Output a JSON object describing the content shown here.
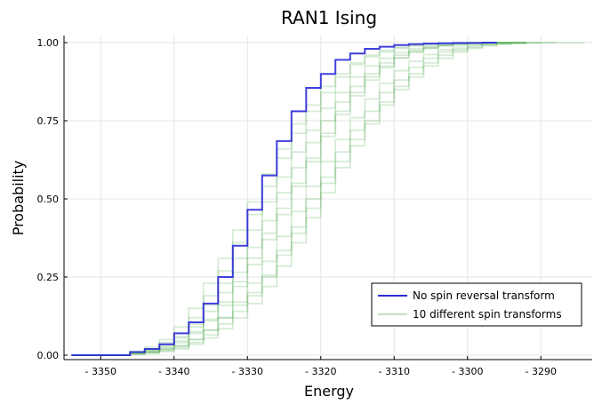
{
  "chart_data": {
    "type": "line",
    "step": true,
    "title": "RAN1 Ising",
    "xlabel": "Energy",
    "ylabel": "Probability",
    "xlim": [
      -3355,
      -3283
    ],
    "ylim": [
      0,
      1
    ],
    "x_ticks": [
      -3350,
      -3340,
      -3330,
      -3320,
      -3310,
      -3300,
      -3290
    ],
    "x_tick_labels": [
      "- 3350",
      "- 3340",
      "- 3330",
      "- 3320",
      "- 3310",
      "- 3300",
      "- 3290"
    ],
    "y_ticks": [
      0,
      0.25,
      0.5,
      0.75,
      1
    ],
    "y_tick_labels": [
      "0.00",
      "0.25",
      "0.50",
      "0.75",
      "1.00"
    ],
    "grid": true,
    "legend_position": "bottom-right",
    "legend": [
      "No spin reversal transform",
      "10 different spin transforms"
    ],
    "colors": {
      "main": "#2b2bd8",
      "transforms": "#4aa84a"
    },
    "series": [
      {
        "group": "No spin reversal transform",
        "x": [
          -3354,
          -3346,
          -3344,
          -3342,
          -3340,
          -3338,
          -3336,
          -3334,
          -3332,
          -3330,
          -3328,
          -3326,
          -3324,
          -3322,
          -3320,
          -3318,
          -3316,
          -3314,
          -3312,
          -3310,
          -3308,
          -3306,
          -3304,
          -3302,
          -3300,
          -3298,
          -3296
        ],
        "y": [
          0.0,
          0.01,
          0.02,
          0.035,
          0.07,
          0.105,
          0.165,
          0.25,
          0.35,
          0.465,
          0.575,
          0.685,
          0.78,
          0.855,
          0.9,
          0.945,
          0.965,
          0.98,
          0.987,
          0.992,
          0.995,
          0.997,
          0.998,
          0.999,
          0.999,
          1.0,
          1.0
        ]
      },
      {
        "group": "10 different spin transforms",
        "x": [
          -3354,
          -3346,
          -3344,
          -3342,
          -3340,
          -3338,
          -3336,
          -3334,
          -3332,
          -3330,
          -3328,
          -3326,
          -3324,
          -3322,
          -3320,
          -3318,
          -3316,
          -3314,
          -3312,
          -3310,
          -3308,
          -3306,
          -3304,
          -3302,
          -3300,
          -3298,
          -3296,
          -3294,
          -3292
        ],
        "y": [
          0.0,
          0.005,
          0.01,
          0.02,
          0.03,
          0.05,
          0.08,
          0.12,
          0.16,
          0.2,
          0.255,
          0.335,
          0.41,
          0.5,
          0.57,
          0.65,
          0.72,
          0.78,
          0.84,
          0.88,
          0.92,
          0.95,
          0.97,
          0.98,
          0.99,
          0.995,
          0.998,
          1.0,
          1.0
        ]
      },
      {
        "group": "10 different spin transforms",
        "x": [
          -3354,
          -3346,
          -3344,
          -3342,
          -3340,
          -3338,
          -3336,
          -3334,
          -3332,
          -3330,
          -3328,
          -3326,
          -3324,
          -3322,
          -3320,
          -3318,
          -3316,
          -3314,
          -3312,
          -3310,
          -3308,
          -3306,
          -3304,
          -3302,
          -3300,
          -3298,
          -3296,
          -3294,
          -3292
        ],
        "y": [
          0.0,
          0.008,
          0.015,
          0.03,
          0.055,
          0.09,
          0.14,
          0.2,
          0.265,
          0.345,
          0.43,
          0.52,
          0.6,
          0.68,
          0.75,
          0.81,
          0.86,
          0.9,
          0.935,
          0.96,
          0.975,
          0.985,
          0.992,
          0.996,
          0.998,
          0.999,
          1.0,
          1.0,
          1.0
        ]
      },
      {
        "group": "10 different spin transforms",
        "x": [
          -3354,
          -3346,
          -3344,
          -3342,
          -3340,
          -3338,
          -3336,
          -3334,
          -3332,
          -3330,
          -3328,
          -3326,
          -3324,
          -3322,
          -3320,
          -3318,
          -3316,
          -3314,
          -3312,
          -3310,
          -3308,
          -3306,
          -3304,
          -3302,
          -3300,
          -3298,
          -3296,
          -3294,
          -3292,
          -3290
        ],
        "y": [
          0.0,
          0.004,
          0.008,
          0.015,
          0.025,
          0.04,
          0.065,
          0.1,
          0.14,
          0.19,
          0.25,
          0.32,
          0.39,
          0.47,
          0.55,
          0.62,
          0.69,
          0.75,
          0.81,
          0.86,
          0.9,
          0.935,
          0.96,
          0.975,
          0.985,
          0.992,
          0.996,
          0.998,
          1.0,
          1.0
        ]
      },
      {
        "group": "10 different spin transforms",
        "x": [
          -3354,
          -3346,
          -3344,
          -3342,
          -3340,
          -3338,
          -3336,
          -3334,
          -3332,
          -3330,
          -3328,
          -3326,
          -3324,
          -3322,
          -3320,
          -3318,
          -3316,
          -3314,
          -3312,
          -3310,
          -3308,
          -3306,
          -3304,
          -3302,
          -3300,
          -3298,
          -3296,
          -3294
        ],
        "y": [
          0.0,
          0.01,
          0.02,
          0.04,
          0.07,
          0.12,
          0.19,
          0.27,
          0.36,
          0.45,
          0.54,
          0.63,
          0.71,
          0.78,
          0.84,
          0.89,
          0.93,
          0.955,
          0.97,
          0.982,
          0.99,
          0.995,
          0.997,
          0.999,
          1.0,
          1.0,
          1.0,
          1.0
        ]
      },
      {
        "group": "10 different spin transforms",
        "x": [
          -3354,
          -3346,
          -3344,
          -3342,
          -3340,
          -3338,
          -3336,
          -3334,
          -3332,
          -3330,
          -3328,
          -3326,
          -3324,
          -3322,
          -3320,
          -3318,
          -3316,
          -3314,
          -3312,
          -3310,
          -3308,
          -3306,
          -3304,
          -3302,
          -3300,
          -3298,
          -3296,
          -3294,
          -3292
        ],
        "y": [
          0.0,
          0.006,
          0.012,
          0.022,
          0.04,
          0.07,
          0.11,
          0.16,
          0.22,
          0.29,
          0.37,
          0.45,
          0.54,
          0.62,
          0.7,
          0.77,
          0.83,
          0.88,
          0.92,
          0.95,
          0.97,
          0.982,
          0.99,
          0.995,
          0.998,
          0.999,
          1.0,
          1.0,
          1.0
        ]
      },
      {
        "group": "10 different spin transforms",
        "x": [
          -3354,
          -3346,
          -3344,
          -3342,
          -3340,
          -3338,
          -3336,
          -3334,
          -3332,
          -3330,
          -3328,
          -3326,
          -3324,
          -3322,
          -3320,
          -3318,
          -3316,
          -3314,
          -3312,
          -3310,
          -3308,
          -3306,
          -3304,
          -3302,
          -3300,
          -3298,
          -3296,
          -3294,
          -3292,
          -3290,
          -3288
        ],
        "y": [
          0.0,
          0.003,
          0.006,
          0.012,
          0.02,
          0.035,
          0.055,
          0.085,
          0.12,
          0.165,
          0.22,
          0.285,
          0.36,
          0.44,
          0.52,
          0.6,
          0.67,
          0.74,
          0.8,
          0.85,
          0.89,
          0.925,
          0.95,
          0.97,
          0.982,
          0.99,
          0.995,
          0.998,
          0.999,
          1.0,
          1.0
        ]
      },
      {
        "group": "10 different spin transforms",
        "x": [
          -3354,
          -3346,
          -3344,
          -3342,
          -3340,
          -3338,
          -3336,
          -3334,
          -3332,
          -3330,
          -3328,
          -3326,
          -3324,
          -3322,
          -3320,
          -3318,
          -3316,
          -3314,
          -3312,
          -3310,
          -3308,
          -3306,
          -3304,
          -3302,
          -3300,
          -3298,
          -3296,
          -3294
        ],
        "y": [
          0.0,
          0.012,
          0.025,
          0.05,
          0.09,
          0.15,
          0.23,
          0.31,
          0.4,
          0.49,
          0.58,
          0.66,
          0.74,
          0.8,
          0.86,
          0.9,
          0.935,
          0.96,
          0.975,
          0.985,
          0.991,
          0.995,
          0.998,
          0.999,
          1.0,
          1.0,
          1.0,
          1.0
        ]
      },
      {
        "group": "10 different spin transforms",
        "x": [
          -3354,
          -3346,
          -3344,
          -3342,
          -3340,
          -3338,
          -3336,
          -3334,
          -3332,
          -3330,
          -3328,
          -3326,
          -3324,
          -3322,
          -3320,
          -3318,
          -3316,
          -3314,
          -3312,
          -3310,
          -3308,
          -3306,
          -3304,
          -3302,
          -3300,
          -3298,
          -3296,
          -3294,
          -3292
        ],
        "y": [
          0.0,
          0.007,
          0.014,
          0.026,
          0.045,
          0.075,
          0.115,
          0.17,
          0.235,
          0.31,
          0.39,
          0.47,
          0.55,
          0.63,
          0.71,
          0.78,
          0.84,
          0.89,
          0.925,
          0.952,
          0.97,
          0.982,
          0.99,
          0.995,
          0.998,
          0.999,
          1.0,
          1.0,
          1.0
        ]
      },
      {
        "group": "10 different spin transforms",
        "x": [
          -3354,
          -3346,
          -3344,
          -3342,
          -3340,
          -3338,
          -3336,
          -3334,
          -3332,
          -3330,
          -3328,
          -3326,
          -3324,
          -3322,
          -3320,
          -3318,
          -3316,
          -3314,
          -3312,
          -3310,
          -3308,
          -3306,
          -3304,
          -3302,
          -3300,
          -3298,
          -3296,
          -3294,
          -3292,
          -3290,
          -3288,
          -3286,
          -3284
        ],
        "y": [
          0.0,
          0.004,
          0.009,
          0.018,
          0.03,
          0.05,
          0.08,
          0.12,
          0.17,
          0.23,
          0.3,
          0.38,
          0.46,
          0.54,
          0.62,
          0.69,
          0.76,
          0.82,
          0.87,
          0.91,
          0.94,
          0.962,
          0.977,
          0.987,
          0.993,
          0.996,
          0.998,
          0.999,
          1.0,
          1.0,
          1.0,
          1.0,
          1.0
        ]
      },
      {
        "group": "10 different spin transforms",
        "x": [
          -3354,
          -3346,
          -3344,
          -3342,
          -3340,
          -3338,
          -3336,
          -3334,
          -3332,
          -3330,
          -3328,
          -3326,
          -3324,
          -3322,
          -3320,
          -3318,
          -3316,
          -3314,
          -3312,
          -3310,
          -3308,
          -3306,
          -3304,
          -3302,
          -3300,
          -3298,
          -3296,
          -3294,
          -3292
        ],
        "y": [
          0.0,
          0.009,
          0.018,
          0.035,
          0.06,
          0.1,
          0.16,
          0.23,
          0.31,
          0.4,
          0.49,
          0.57,
          0.65,
          0.72,
          0.79,
          0.84,
          0.89,
          0.925,
          0.95,
          0.968,
          0.98,
          0.988,
          0.993,
          0.996,
          0.998,
          0.999,
          1.0,
          1.0,
          1.0
        ]
      }
    ]
  }
}
